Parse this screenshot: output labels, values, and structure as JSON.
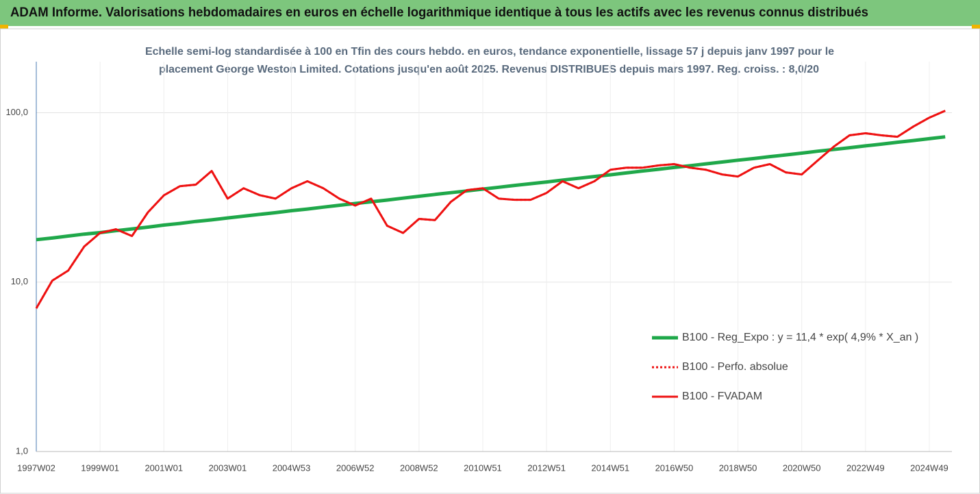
{
  "chart_data": {
    "type": "line",
    "title": "ADAM Informe. Valorisations hebdomadaires en euros en échelle logarithmique identique à tous les actifs avec les revenus connus distribués",
    "subtitle": [
      "Echelle semi-log standardisée à 100 en Tfin des cours hebdo. en euros, tendance exponentielle, lissage 57 j depuis janv 1997 pour le",
      "placement George Weston Limited. Cotations jusqu'en août 2025. Revenus DISTRIBUES depuis mars 1997. Reg. croiss. : 8,0/20"
    ],
    "categories": [
      "1997W02",
      null,
      null,
      null,
      "1999W01",
      null,
      null,
      null,
      "2001W01",
      null,
      null,
      null,
      "2003W01",
      null,
      null,
      null,
      "2004W53",
      null,
      null,
      null,
      "2006W52",
      null,
      null,
      null,
      "2008W52",
      null,
      null,
      null,
      "2010W51",
      null,
      null,
      null,
      "2012W51",
      null,
      null,
      null,
      "2014W51",
      null,
      null,
      null,
      "2016W50",
      null,
      null,
      null,
      "2018W50",
      null,
      null,
      null,
      "2020W50",
      null,
      null,
      null,
      "2022W49",
      null,
      null,
      null,
      "2024W49",
      null
    ],
    "series": [
      {
        "name": "B100 - Reg_Expo : y = 11,4 * exp( 4,9% *  X_an )",
        "color": "#1fa84a",
        "style": "solid",
        "width": 5,
        "values": [
          17.8,
          18.2,
          18.7,
          19.2,
          19.6,
          20.1,
          20.6,
          21.1,
          21.7,
          22.2,
          22.8,
          23.3,
          23.9,
          24.5,
          25.1,
          25.7,
          26.4,
          27.0,
          27.7,
          28.4,
          29.1,
          29.8,
          30.5,
          31.3,
          32.1,
          32.9,
          33.7,
          34.5,
          35.4,
          36.3,
          37.2,
          38.1,
          39.0,
          40.0,
          41.0,
          42.0,
          43.0,
          44.1,
          45.2,
          46.3,
          47.5,
          48.6,
          49.9,
          51.1,
          52.4,
          53.6,
          55.0,
          56.3,
          57.7,
          59.2,
          60.6,
          62.1,
          63.7,
          65.2,
          66.9,
          68.5,
          70.2,
          72.0
        ]
      },
      {
        "name": "B100 - Perfo. absolue",
        "color": "#ee1111",
        "style": "dotted",
        "width": 3,
        "values": [
          7.0,
          10.2,
          11.7,
          16.2,
          19.5,
          20.5,
          18.7,
          25.8,
          32.5,
          36.8,
          37.6,
          45.3,
          31.1,
          35.8,
          32.6,
          31.1,
          35.8,
          39.4,
          35.8,
          31.1,
          28.3,
          31.1,
          21.5,
          19.5,
          23.6,
          23.2,
          29.8,
          34.9,
          35.8,
          31.1,
          30.6,
          30.6,
          33.6,
          39.4,
          35.8,
          39.4,
          46.0,
          47.3,
          47.3,
          48.8,
          49.7,
          47.3,
          46.0,
          43.2,
          42.0,
          47.3,
          49.7,
          44.4,
          43.2,
          52.2,
          62.9,
          73.5,
          75.6,
          73.5,
          72.1,
          82.8,
          93.5,
          102.7
        ]
      },
      {
        "name": "B100 - FVADAM",
        "color": "#ee1111",
        "style": "solid",
        "width": 3,
        "values": [
          7.0,
          10.2,
          11.7,
          16.2,
          19.5,
          20.5,
          18.7,
          25.8,
          32.5,
          36.8,
          37.6,
          45.3,
          31.1,
          35.8,
          32.6,
          31.1,
          35.8,
          39.4,
          35.8,
          31.1,
          28.3,
          31.1,
          21.5,
          19.5,
          23.6,
          23.2,
          29.8,
          34.9,
          35.8,
          31.1,
          30.6,
          30.6,
          33.6,
          39.4,
          35.8,
          39.4,
          46.0,
          47.3,
          47.3,
          48.8,
          49.7,
          47.3,
          46.0,
          43.2,
          42.0,
          47.3,
          49.7,
          44.4,
          43.2,
          52.2,
          62.9,
          73.5,
          75.6,
          73.5,
          72.1,
          82.8,
          93.5,
          102.7
        ]
      }
    ],
    "log_scale": true,
    "ylim": [
      1,
      200
    ],
    "yticks": [
      {
        "value": 1,
        "label": "1,0"
      },
      {
        "value": 10,
        "label": "10,0"
      },
      {
        "value": 100,
        "label": "100,0"
      }
    ],
    "grid": true,
    "legend": "lower-right"
  }
}
